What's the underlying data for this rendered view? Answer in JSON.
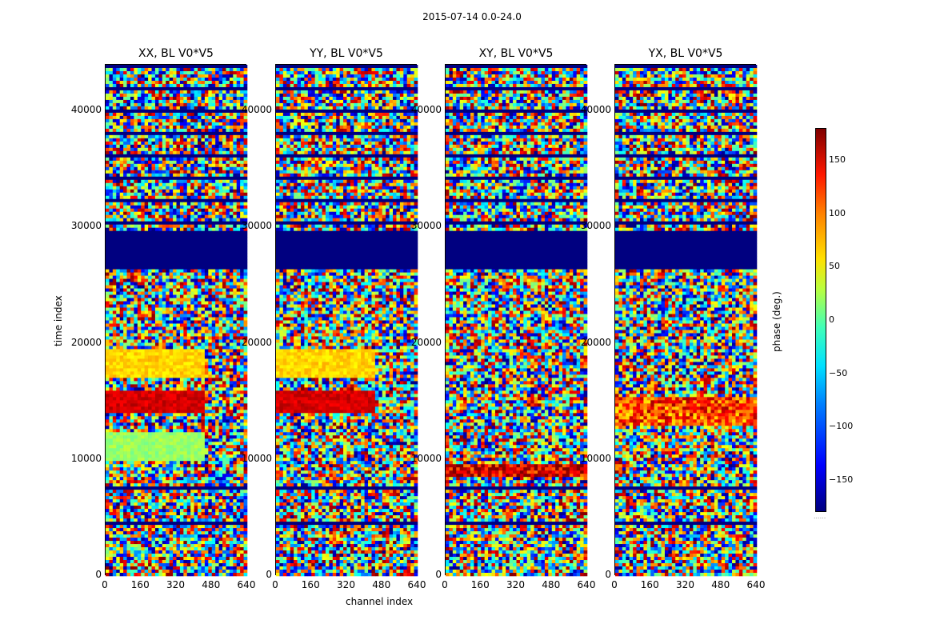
{
  "suptitle": "2015-07-14 0.0-24.0",
  "panels": [
    {
      "title": "XX, BL V0*V5"
    },
    {
      "title": "YY, BL V0*V5"
    },
    {
      "title": "XY, BL V0*V5"
    },
    {
      "title": "YX, BL V0*V5"
    }
  ],
  "ylabel": "time index",
  "xlabel": "channel index",
  "colorbar_label": "phase (deg.)",
  "colorbar_ticks": [
    "150",
    "100",
    "50",
    "0",
    "−50",
    "−100",
    "−150"
  ],
  "colors": {
    "jet_low": "#00007f",
    "jet_blue": "#0000ff",
    "jet_cyan": "#00ffff",
    "jet_green": "#7fff7f",
    "jet_yellow": "#ffff00",
    "jet_red": "#ff0000",
    "jet_high": "#7f0000"
  },
  "chart_data": {
    "type": "heatmap",
    "title": "2015-07-14 0.0-24.0",
    "panels": [
      "XX, BL V0*V5",
      "YY, BL V0*V5",
      "XY, BL V0*V5",
      "YX, BL V0*V5"
    ],
    "xlabel": "channel index",
    "ylabel": "time index",
    "x_ticks": [
      0,
      160,
      320,
      480,
      640
    ],
    "y_ticks": [
      0,
      10000,
      20000,
      30000,
      40000
    ],
    "xlim": [
      0,
      640
    ],
    "ylim": [
      0,
      44000
    ],
    "colorbar": {
      "label": "phase (deg.)",
      "range": [
        -180,
        180
      ],
      "ticks": [
        150,
        100,
        50,
        0,
        -50,
        -100,
        -150
      ],
      "colormap": "jet"
    },
    "band_regions": [
      {
        "panel": "XX",
        "time": [
          14000,
          16000
        ],
        "phase": 150
      },
      {
        "panel": "XX",
        "time": [
          17000,
          19500
        ],
        "phase": 60
      },
      {
        "panel": "XX",
        "time": [
          10000,
          12500
        ],
        "phase": 10
      },
      {
        "panel": "YY",
        "time": [
          14000,
          16000
        ],
        "phase": 150
      },
      {
        "panel": "YY",
        "time": [
          17000,
          19500
        ],
        "phase": 60
      },
      {
        "panel": "XY",
        "time": [
          8500,
          9500
        ],
        "phase": 150
      },
      {
        "panel": "YX",
        "time": [
          13000,
          15500
        ],
        "phase": 110
      }
    ],
    "blank_rows": [
      [
        26500,
        29800
      ]
    ]
  }
}
